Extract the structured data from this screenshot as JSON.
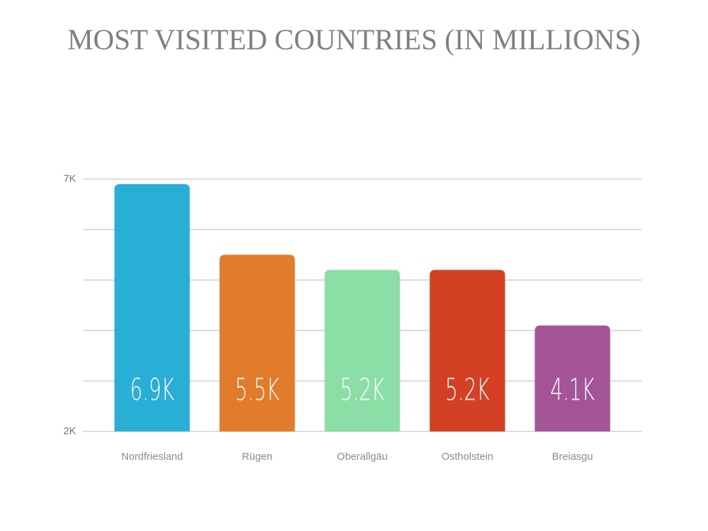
{
  "chart_data": {
    "type": "bar",
    "title": "MOST VISITED COUNTRIES (IN MILLIONS)",
    "categories": [
      "Nordfriesland",
      "Rügen",
      "Oberallgäu",
      "Ostholstein",
      "Breiasgu"
    ],
    "values": [
      6900,
      5500,
      5200,
      5200,
      4100
    ],
    "value_labels": [
      "6.9K",
      "5.5K",
      "5.2K",
      "5.2K",
      "4.1K"
    ],
    "colors": [
      "#29aed6",
      "#e27b2a",
      "#8bdfa6",
      "#d44023",
      "#a35597"
    ],
    "ylim": [
      2000,
      7000
    ],
    "yticks": [
      {
        "value": 2000,
        "label": "2K"
      },
      {
        "value": 7000,
        "label": "7K"
      }
    ],
    "ygrid": [
      2000,
      3000,
      4000,
      5000,
      6000,
      7000
    ],
    "grid": true
  }
}
